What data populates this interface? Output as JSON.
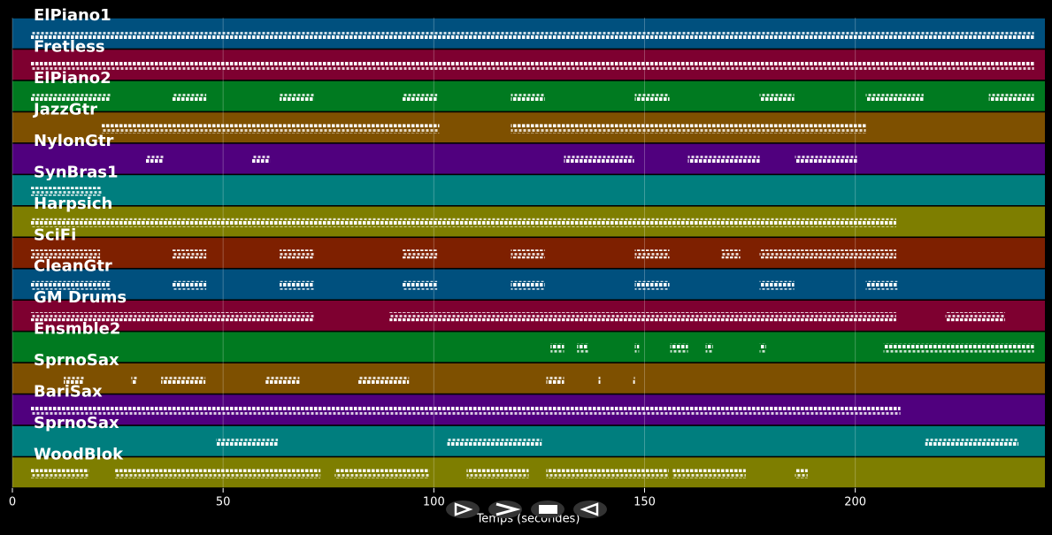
{
  "chart_data": {
    "type": "pianoroll",
    "x_label": "Temps (secondes)",
    "xlim": [
      0,
      245
    ],
    "xticks": [
      0,
      50,
      100,
      150,
      200
    ],
    "grid": true,
    "note_color": "#ffffff",
    "tracks": [
      {
        "name": "ElPiano1",
        "color": "#00507e",
        "segments": [
          [
            4.4,
            242.4
          ]
        ]
      },
      {
        "name": "Fretless",
        "color": "#7e0030",
        "segments": [
          [
            4.4,
            242.4
          ]
        ]
      },
      {
        "name": "ElPiano2",
        "color": "#007a20",
        "segments": [
          [
            4.4,
            23.3
          ],
          [
            38,
            46
          ],
          [
            63.4,
            71.6
          ],
          [
            92.6,
            100.8
          ],
          [
            118.3,
            126.3
          ],
          [
            147.7,
            155.9
          ],
          [
            177.3,
            185.5
          ],
          [
            202.5,
            216.2
          ],
          [
            231.7,
            242.4
          ]
        ]
      },
      {
        "name": "JazzGtr",
        "color": "#7e5000",
        "segments": [
          [
            21.2,
            101.3
          ],
          [
            118.3,
            202.5
          ]
        ]
      },
      {
        "name": "NylonGtr",
        "color": "#50007e",
        "segments": [
          [
            31.7,
            35.9
          ],
          [
            56.9,
            61.1
          ],
          [
            130.9,
            147.5
          ],
          [
            160.3,
            177.3
          ],
          [
            185.7,
            200.4
          ]
        ]
      },
      {
        "name": "SynBras1",
        "color": "#007e7e",
        "segments": [
          [
            4.4,
            21.2
          ]
        ]
      },
      {
        "name": "Harpsich",
        "color": "#7e7e00",
        "segments": [
          [
            4.4,
            209.7
          ]
        ]
      },
      {
        "name": "SciFi",
        "color": "#7e2000",
        "segments": [
          [
            4.4,
            20.8
          ],
          [
            38,
            46
          ],
          [
            63.4,
            71.6
          ],
          [
            92.6,
            100.8
          ],
          [
            118.3,
            126.3
          ],
          [
            147.7,
            155.9
          ],
          [
            168.3,
            172.7
          ],
          [
            177.3,
            209.7
          ]
        ]
      },
      {
        "name": "CleanGtr",
        "color": "#00507e",
        "segments": [
          [
            4.4,
            23.3
          ],
          [
            38,
            46
          ],
          [
            63.4,
            71.6
          ],
          [
            92.6,
            100.8
          ],
          [
            118.3,
            126.3
          ],
          [
            147.7,
            155.9
          ],
          [
            177.3,
            185.5
          ],
          [
            202.5,
            210
          ]
        ]
      },
      {
        "name": "GM Drums",
        "color": "#7e0030",
        "segments": [
          [
            4.4,
            71.6
          ],
          [
            89.5,
            209.7
          ],
          [
            221.4,
            235.5
          ]
        ]
      },
      {
        "name": "Ensmble2",
        "color": "#007a20",
        "segments": [
          [
            127.7,
            130.9
          ],
          [
            134,
            136.6
          ],
          [
            147.7,
            148.7
          ],
          [
            156.1,
            160.3
          ],
          [
            164.5,
            166.2
          ],
          [
            177.3,
            178.8
          ],
          [
            206.7,
            242.4
          ]
        ]
      },
      {
        "name": "SprnoSax",
        "color": "#7e5000",
        "segments": [
          [
            12.2,
            17
          ],
          [
            28.2,
            29.6
          ],
          [
            35.3,
            45.8
          ],
          [
            60.1,
            68.1
          ],
          [
            82.1,
            94.1
          ],
          [
            126.7,
            130.9
          ],
          [
            139.1,
            139.5
          ],
          [
            147.3,
            147.7
          ]
        ]
      },
      {
        "name": "BariSax",
        "color": "#50007e",
        "segments": [
          [
            4.4,
            210.7
          ]
        ]
      },
      {
        "name": "SprnoSax",
        "color": "#007e7e",
        "segments": [
          [
            48.3,
            63
          ],
          [
            103.2,
            125.6
          ],
          [
            216.6,
            238.7
          ]
        ]
      },
      {
        "name": "WoodBlok",
        "color": "#7e7e00",
        "segments": [
          [
            4.4,
            18.1
          ],
          [
            24.4,
            73.1
          ],
          [
            76.5,
            98.9
          ],
          [
            107.8,
            122.5
          ],
          [
            126.7,
            155.7
          ],
          [
            156.7,
            174
          ],
          [
            185.7,
            188.7
          ]
        ]
      }
    ]
  }
}
